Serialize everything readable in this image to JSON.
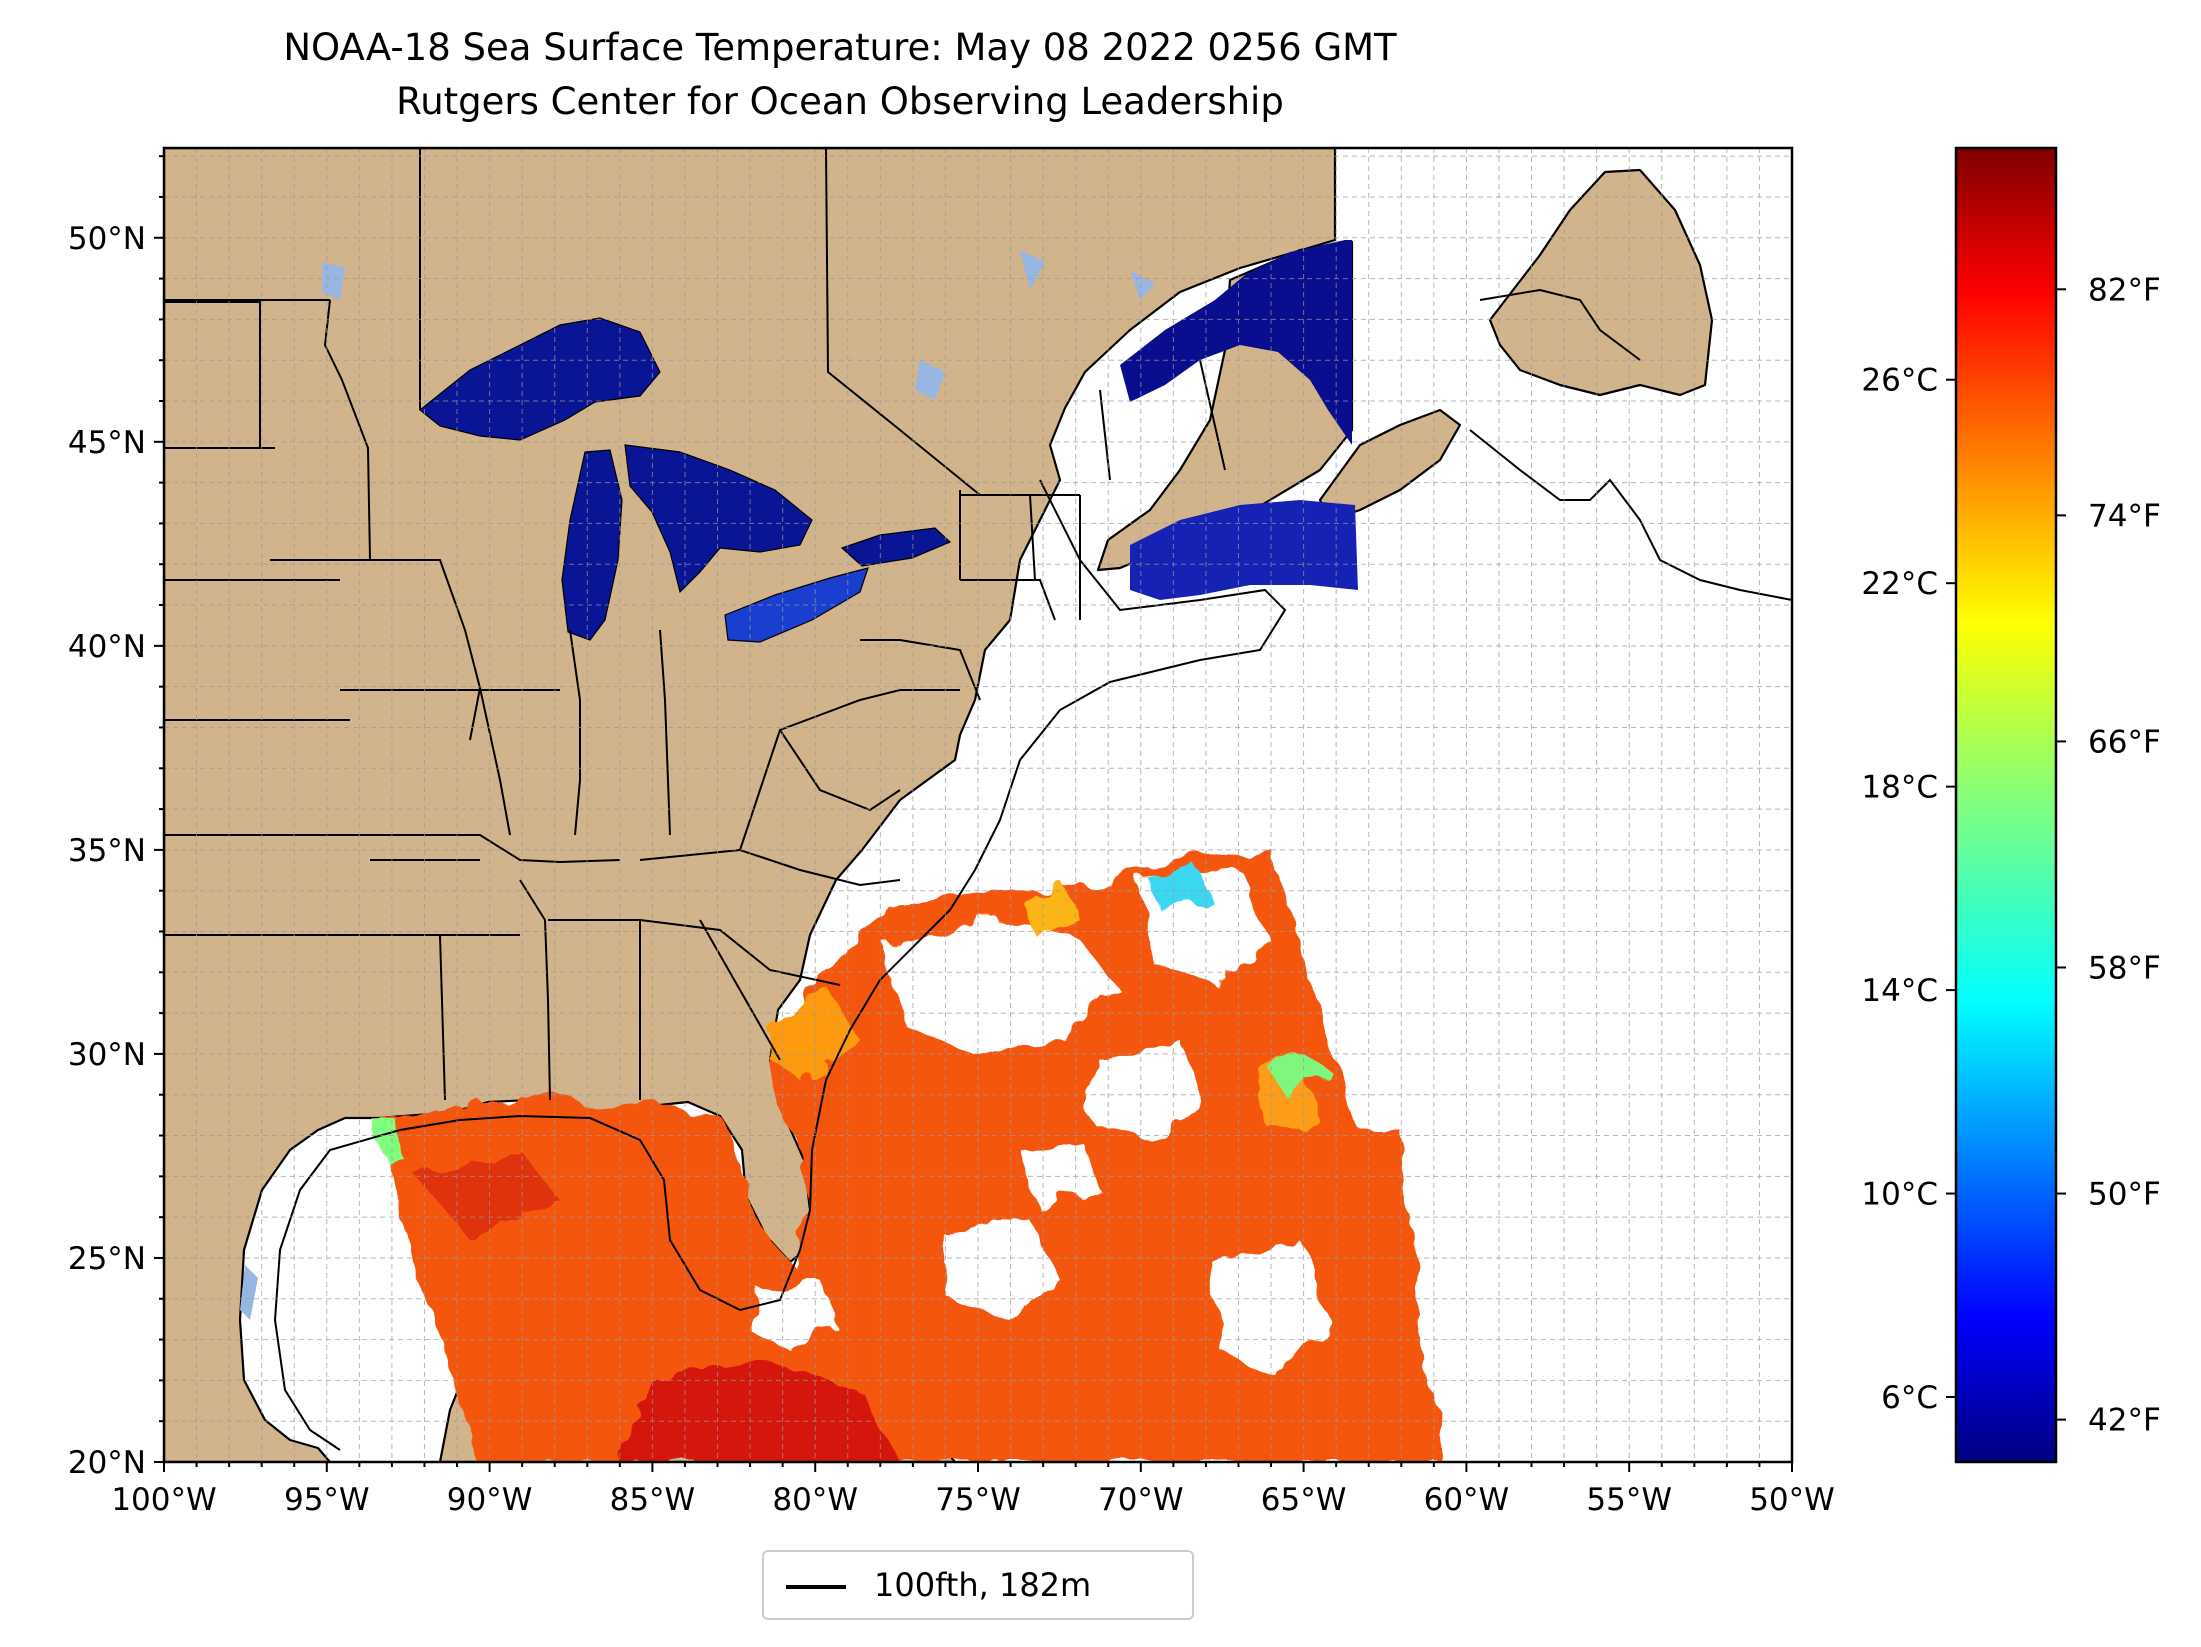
{
  "title": "NOAA-18 Sea Surface Temperature: May 08 2022 0256 GMT",
  "subtitle": "Rutgers Center for Ocean Observing Leadership",
  "map": {
    "lon_range": [
      -100,
      -50
    ],
    "lat_range": [
      20,
      52.2
    ],
    "lon_ticks": [
      "100°W",
      "95°W",
      "90°W",
      "85°W",
      "80°W",
      "75°W",
      "70°W",
      "65°W",
      "60°W",
      "55°W",
      "50°W"
    ],
    "lat_ticks": [
      "20°N",
      "25°N",
      "30°N",
      "35°N",
      "40°N",
      "45°N",
      "50°N"
    ],
    "grid": "on",
    "land_color": "#d2b48c",
    "lake_color": "#97b6e1",
    "layers": [
      "land",
      "state-borders",
      "great-lakes-sst",
      "sst-swath",
      "100-fathom-isobath"
    ]
  },
  "legend": {
    "label": "100fth, 182m",
    "placement": "bottom-center"
  },
  "colorbar": {
    "colormap": "jet",
    "celsius_ticks": [
      "6°C",
      "10°C",
      "14°C",
      "18°C",
      "22°C",
      "26°C"
    ],
    "fahrenheit_ticks": [
      "42°F",
      "50°F",
      "58°F",
      "66°F",
      "74°F",
      "82°F"
    ],
    "range_f": [
      40.5,
      87
    ]
  }
}
